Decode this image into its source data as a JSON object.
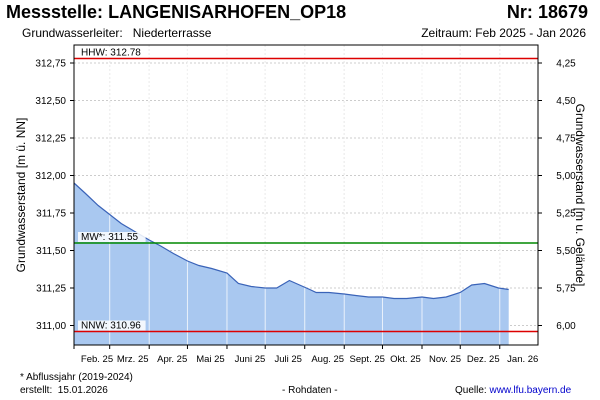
{
  "header": {
    "station_label": "Messstelle:",
    "station_name": "LANGENISARHOFEN_OP18",
    "nr_label": "Nr:",
    "nr_value": "18679",
    "aquifer_label": "Grundwasserleiter:",
    "aquifer_value": "Niederterrasse",
    "period_label": "Zeitraum:",
    "period_value": "Feb 2025 - Jan 2026"
  },
  "footer": {
    "note": "* Abflussjahr (2019-2024)",
    "created_label": "erstellt:",
    "created_date": "15.01.2026",
    "raw": "- Rohdaten -",
    "source_label": "Quelle:",
    "source_value": "www.lfu.bayern.de"
  },
  "colors": {
    "area_fill": "#a9c8f0",
    "line": "#3a63b8",
    "hhw": "#dd0000",
    "nnw": "#dd0000",
    "mw": "#008800",
    "grid": "#cccccc"
  },
  "chart_data": {
    "type": "area",
    "ylabel": "Grundwasserstand [m ü. NN]",
    "y2label": "Grundwasserstand [m u. Gelände]",
    "ylim": [
      310.87,
      312.87
    ],
    "yticks": [
      "312,75",
      "312,50",
      "312,25",
      "312,00",
      "311,75",
      "311,50",
      "311,25",
      "311,00"
    ],
    "ytick_values": [
      312.75,
      312.5,
      312.25,
      312.0,
      311.75,
      311.5,
      311.25,
      311.0
    ],
    "y2ticks": [
      "4,25",
      "4,50",
      "4,75",
      "5,00",
      "5,25",
      "5,50",
      "5,75",
      "6,00"
    ],
    "y2tick_values": [
      4.25,
      4.5,
      4.75,
      5.0,
      5.25,
      5.5,
      5.75,
      6.0
    ],
    "y2_offset": 317.0,
    "xlim": [
      "2025-02-01",
      "2026-01-31"
    ],
    "xticks": [
      "Feb. 25",
      "Mrz. 25",
      "Apr. 25",
      "Mai 25",
      "Juni 25",
      "Juli 25",
      "Aug. 25",
      "Sept. 25",
      "Okt. 25",
      "Nov. 25",
      "Dez. 25",
      "Jan. 26"
    ],
    "xtick_dates": [
      "2025-02-01",
      "2025-03-01",
      "2025-04-01",
      "2025-05-01",
      "2025-06-01",
      "2025-07-01",
      "2025-08-01",
      "2025-09-01",
      "2025-10-01",
      "2025-11-01",
      "2025-12-01",
      "2026-01-01"
    ],
    "reference_lines": [
      {
        "label": "HHW: 312.78",
        "value": 312.78,
        "color": "#dd0000"
      },
      {
        "label": "MW*: 311.55",
        "value": 311.55,
        "color": "#008800"
      },
      {
        "label": "NNW: 310.96",
        "value": 310.96,
        "color": "#dd0000"
      }
    ],
    "series": [
      {
        "x": [
          "2025-02-01",
          "2025-02-10",
          "2025-02-20",
          "2025-03-01",
          "2025-03-10",
          "2025-03-20",
          "2025-04-01",
          "2025-04-10",
          "2025-04-20",
          "2025-05-01",
          "2025-05-10",
          "2025-05-20",
          "2025-06-01",
          "2025-06-10",
          "2025-06-20",
          "2025-07-01",
          "2025-07-10",
          "2025-07-20",
          "2025-07-28",
          "2025-08-05",
          "2025-08-10",
          "2025-08-20",
          "2025-09-01",
          "2025-09-10",
          "2025-09-20",
          "2025-10-01",
          "2025-10-10",
          "2025-10-20",
          "2025-11-01",
          "2025-11-10",
          "2025-11-20",
          "2025-12-01",
          "2025-12-10",
          "2025-12-20",
          "2025-12-31",
          "2026-01-08"
        ],
        "values": [
          311.95,
          311.88,
          311.8,
          311.74,
          311.68,
          311.63,
          311.57,
          311.53,
          311.48,
          311.43,
          311.4,
          311.38,
          311.35,
          311.28,
          311.26,
          311.25,
          311.25,
          311.3,
          311.27,
          311.24,
          311.22,
          311.22,
          311.21,
          311.2,
          311.19,
          311.19,
          311.18,
          311.18,
          311.19,
          311.18,
          311.19,
          311.22,
          311.27,
          311.28,
          311.25,
          311.24
        ]
      }
    ]
  }
}
